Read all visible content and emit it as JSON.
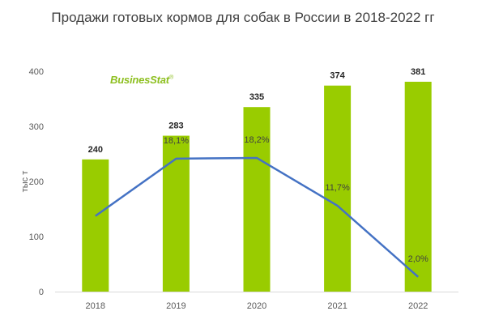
{
  "title": "Продажи готовых кормов для собак в России в  2018-2022 гг",
  "watermark": {
    "text": "BusinesStat",
    "mark": "®"
  },
  "colors": {
    "bar": "#99cc00",
    "line": "#4472c4",
    "axis": "#d9d9d9",
    "text": "#595959"
  },
  "chart_data": {
    "type": "bar",
    "categories": [
      "2018",
      "2019",
      "2020",
      "2021",
      "2022"
    ],
    "values": [
      240,
      283,
      335,
      374,
      381
    ],
    "value_labels": [
      "240",
      "283",
      "335",
      "374",
      "381"
    ],
    "ylabel": "тыс т",
    "ylim": [
      0,
      400
    ],
    "yticks": [
      "0",
      "100",
      "200",
      "300",
      "400"
    ],
    "grid": false,
    "growth_line": {
      "type": "line",
      "points_categories": [
        "2018",
        "2019",
        "2020",
        "2021",
        "2022"
      ],
      "values_pct": [
        null,
        18.1,
        18.2,
        11.7,
        2.0
      ],
      "labels": [
        "",
        "18,1%",
        "18,2%",
        "11,7%",
        "2,0%"
      ]
    }
  }
}
